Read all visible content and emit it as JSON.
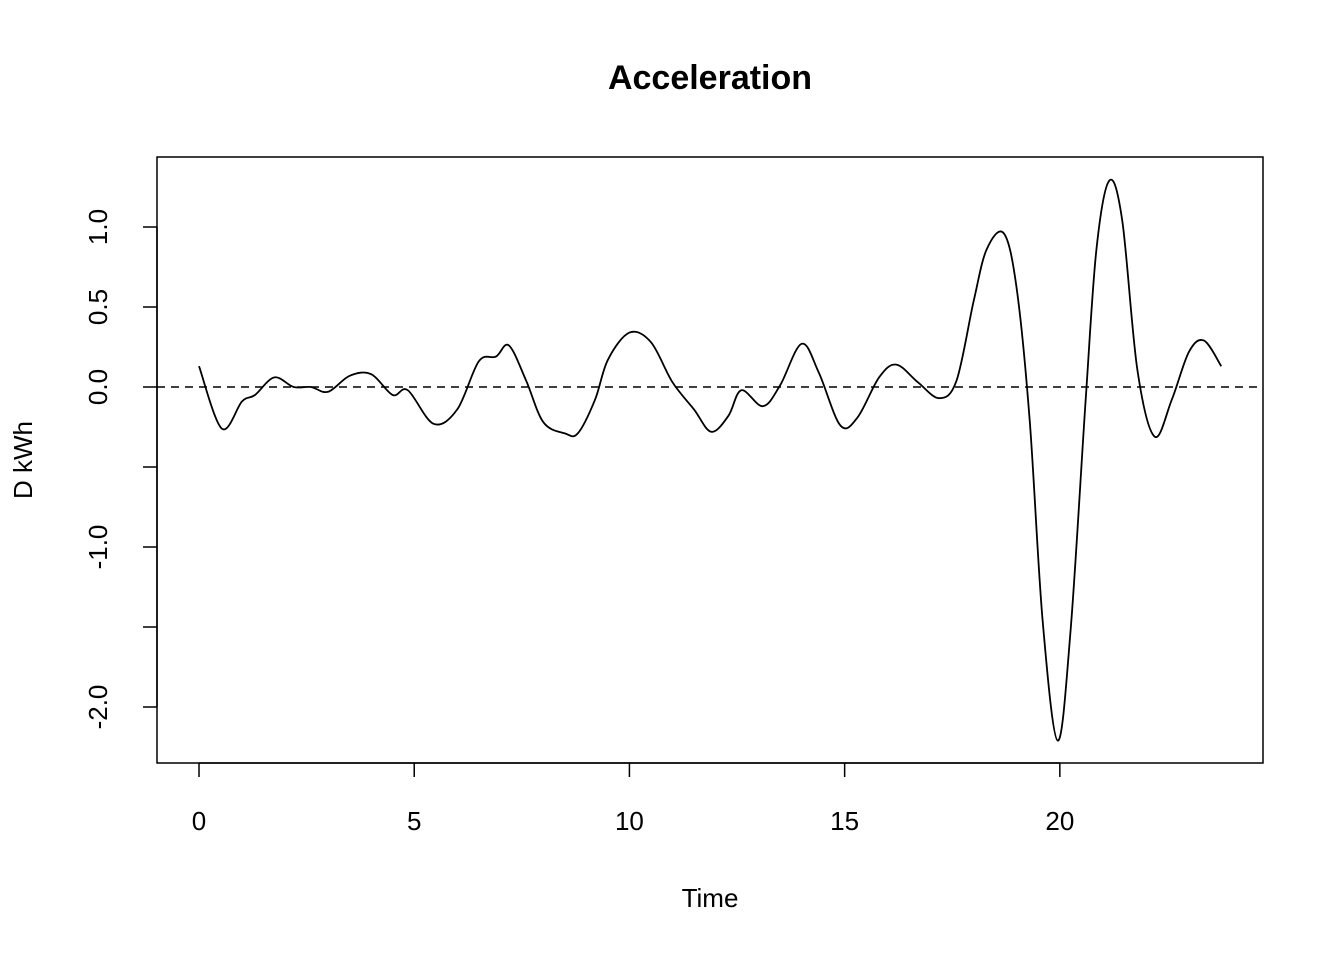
{
  "chart_data": {
    "type": "line",
    "title": "Acceleration",
    "x_label": "Time",
    "y_label": "D kWh",
    "x": [
      0,
      0.53,
      1,
      1.3,
      1.75,
      2.2,
      2.6,
      3,
      3.5,
      4,
      4.5,
      4.85,
      5.45,
      6,
      6.5,
      6.9,
      7.2,
      7.6,
      8,
      8.5,
      8.8,
      9.2,
      9.5,
      10,
      10.5,
      11,
      11.5,
      11.9,
      12.3,
      12.6,
      13.1,
      13.5,
      14,
      14.4,
      14.9,
      15.3,
      15.8,
      16.2,
      16.7,
      17.2,
      17.6,
      18,
      18.3,
      18.7,
      19,
      19.3,
      19.6,
      19.95,
      20.25,
      20.6,
      20.85,
      21.15,
      21.45,
      21.8,
      22.2,
      22.6,
      23,
      23.35,
      23.75
    ],
    "series": [
      {
        "color": "#000000",
        "values": [
          0.13,
          -0.26,
          -0.09,
          -0.05,
          0.06,
          0,
          0,
          -0.03,
          0.07,
          0.08,
          -0.05,
          -0.02,
          -0.23,
          -0.14,
          0.16,
          0.19,
          0.26,
          0.04,
          -0.22,
          -0.29,
          -0.29,
          -0.08,
          0.17,
          0.34,
          0.28,
          0.03,
          -0.14,
          -0.28,
          -0.18,
          -0.02,
          -0.12,
          0.01,
          0.27,
          0.09,
          -0.24,
          -0.19,
          0.06,
          0.14,
          0.03,
          -0.07,
          0.04,
          0.54,
          0.86,
          0.96,
          0.61,
          -0.21,
          -1.46,
          -2.21,
          -1.52,
          -0.08,
          0.86,
          1.29,
          1.04,
          0.11,
          -0.31,
          -0.08,
          0.22,
          0.29,
          0.13
        ]
      }
    ],
    "hline": 0,
    "xlim": [
      -0.976,
      24.72
    ],
    "ylim": [
      -2.35,
      1.4375
    ],
    "xticks": [
      0,
      5,
      10,
      15,
      20
    ],
    "yticks": [
      {
        "value": -2,
        "label": "-2.0"
      },
      {
        "value": -1.5,
        "label": null
      },
      {
        "value": -1,
        "label": "-1.0"
      },
      {
        "value": -0.5,
        "label": null
      },
      {
        "value": 0,
        "label": "0.0"
      },
      {
        "value": 0.5,
        "label": "0.5"
      },
      {
        "value": 1,
        "label": "1.0"
      }
    ]
  }
}
